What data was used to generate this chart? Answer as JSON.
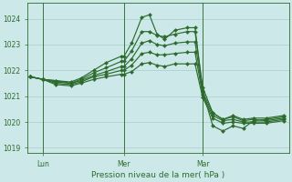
{
  "xlabel": "Pression niveau de la mer( hPa )",
  "bg_color": "#cce8e8",
  "line_color": "#2d6b2d",
  "grid_color": "#a8cccc",
  "tick_color": "#2d6b2d",
  "label_color": "#2d6b2d",
  "ylim": [
    1018.8,
    1024.6
  ],
  "yticks": [
    1019,
    1020,
    1021,
    1022,
    1023,
    1024
  ],
  "day_labels": [
    "Lun",
    "Mer",
    "Mar"
  ],
  "day_positions": [
    0.05,
    0.37,
    0.68
  ],
  "series": [
    {
      "x": [
        0.0,
        0.05,
        0.1,
        0.16,
        0.2,
        0.25,
        0.3,
        0.36,
        0.37,
        0.4,
        0.44,
        0.47,
        0.5,
        0.53,
        0.57,
        0.62,
        0.65,
        0.68,
        0.72,
        0.76,
        0.8,
        0.84,
        0.88,
        0.93,
        1.0
      ],
      "y": [
        1021.75,
        1021.65,
        1021.6,
        1021.55,
        1021.7,
        1022.0,
        1022.3,
        1022.55,
        1022.55,
        1023.05,
        1024.05,
        1024.15,
        1023.4,
        1023.2,
        1023.55,
        1023.65,
        1023.65,
        1021.2,
        1019.85,
        1019.65,
        1019.85,
        1019.75,
        1020.05,
        1020.1,
        1020.2
      ]
    },
    {
      "x": [
        0.0,
        0.05,
        0.1,
        0.16,
        0.2,
        0.25,
        0.3,
        0.36,
        0.37,
        0.4,
        0.44,
        0.47,
        0.5,
        0.53,
        0.57,
        0.62,
        0.65,
        0.68,
        0.72,
        0.76,
        0.8,
        0.84,
        0.88,
        0.93,
        1.0
      ],
      "y": [
        1021.75,
        1021.65,
        1021.6,
        1021.5,
        1021.65,
        1021.9,
        1022.1,
        1022.35,
        1022.35,
        1022.75,
        1023.5,
        1023.5,
        1023.35,
        1023.3,
        1023.4,
        1023.5,
        1023.5,
        1021.35,
        1020.35,
        1020.1,
        1020.25,
        1020.1,
        1020.15,
        1020.15,
        1020.25
      ]
    },
    {
      "x": [
        0.0,
        0.05,
        0.1,
        0.16,
        0.2,
        0.25,
        0.3,
        0.36,
        0.37,
        0.4,
        0.44,
        0.47,
        0.5,
        0.53,
        0.57,
        0.62,
        0.65,
        0.68,
        0.72,
        0.76,
        0.8,
        0.84,
        0.88,
        0.93,
        1.0
      ],
      "y": [
        1021.75,
        1021.65,
        1021.55,
        1021.5,
        1021.6,
        1021.8,
        1021.95,
        1022.15,
        1022.15,
        1022.45,
        1023.05,
        1023.15,
        1023.0,
        1022.95,
        1023.05,
        1023.1,
        1023.1,
        1021.15,
        1020.35,
        1020.1,
        1020.2,
        1020.05,
        1020.1,
        1020.05,
        1020.15
      ]
    },
    {
      "x": [
        0.0,
        0.05,
        0.1,
        0.16,
        0.2,
        0.25,
        0.3,
        0.36,
        0.37,
        0.4,
        0.44,
        0.47,
        0.5,
        0.53,
        0.57,
        0.62,
        0.65,
        0.68,
        0.72,
        0.76,
        0.8,
        0.84,
        0.88,
        0.93,
        1.0
      ],
      "y": [
        1021.75,
        1021.65,
        1021.5,
        1021.45,
        1021.55,
        1021.75,
        1021.85,
        1022.0,
        1022.0,
        1022.2,
        1022.65,
        1022.7,
        1022.6,
        1022.6,
        1022.65,
        1022.7,
        1022.7,
        1021.05,
        1020.25,
        1020.05,
        1020.1,
        1020.0,
        1020.0,
        1020.0,
        1020.1
      ]
    },
    {
      "x": [
        0.0,
        0.05,
        0.1,
        0.16,
        0.2,
        0.25,
        0.3,
        0.36,
        0.37,
        0.4,
        0.44,
        0.47,
        0.5,
        0.53,
        0.57,
        0.62,
        0.65,
        0.68,
        0.72,
        0.76,
        0.8,
        0.84,
        0.88,
        0.93,
        1.0
      ],
      "y": [
        1021.75,
        1021.65,
        1021.45,
        1021.4,
        1021.5,
        1021.65,
        1021.75,
        1021.85,
        1021.85,
        1021.95,
        1022.25,
        1022.3,
        1022.2,
        1022.15,
        1022.25,
        1022.25,
        1022.25,
        1020.95,
        1020.15,
        1019.95,
        1020.0,
        1019.95,
        1019.95,
        1019.95,
        1020.05
      ]
    }
  ]
}
